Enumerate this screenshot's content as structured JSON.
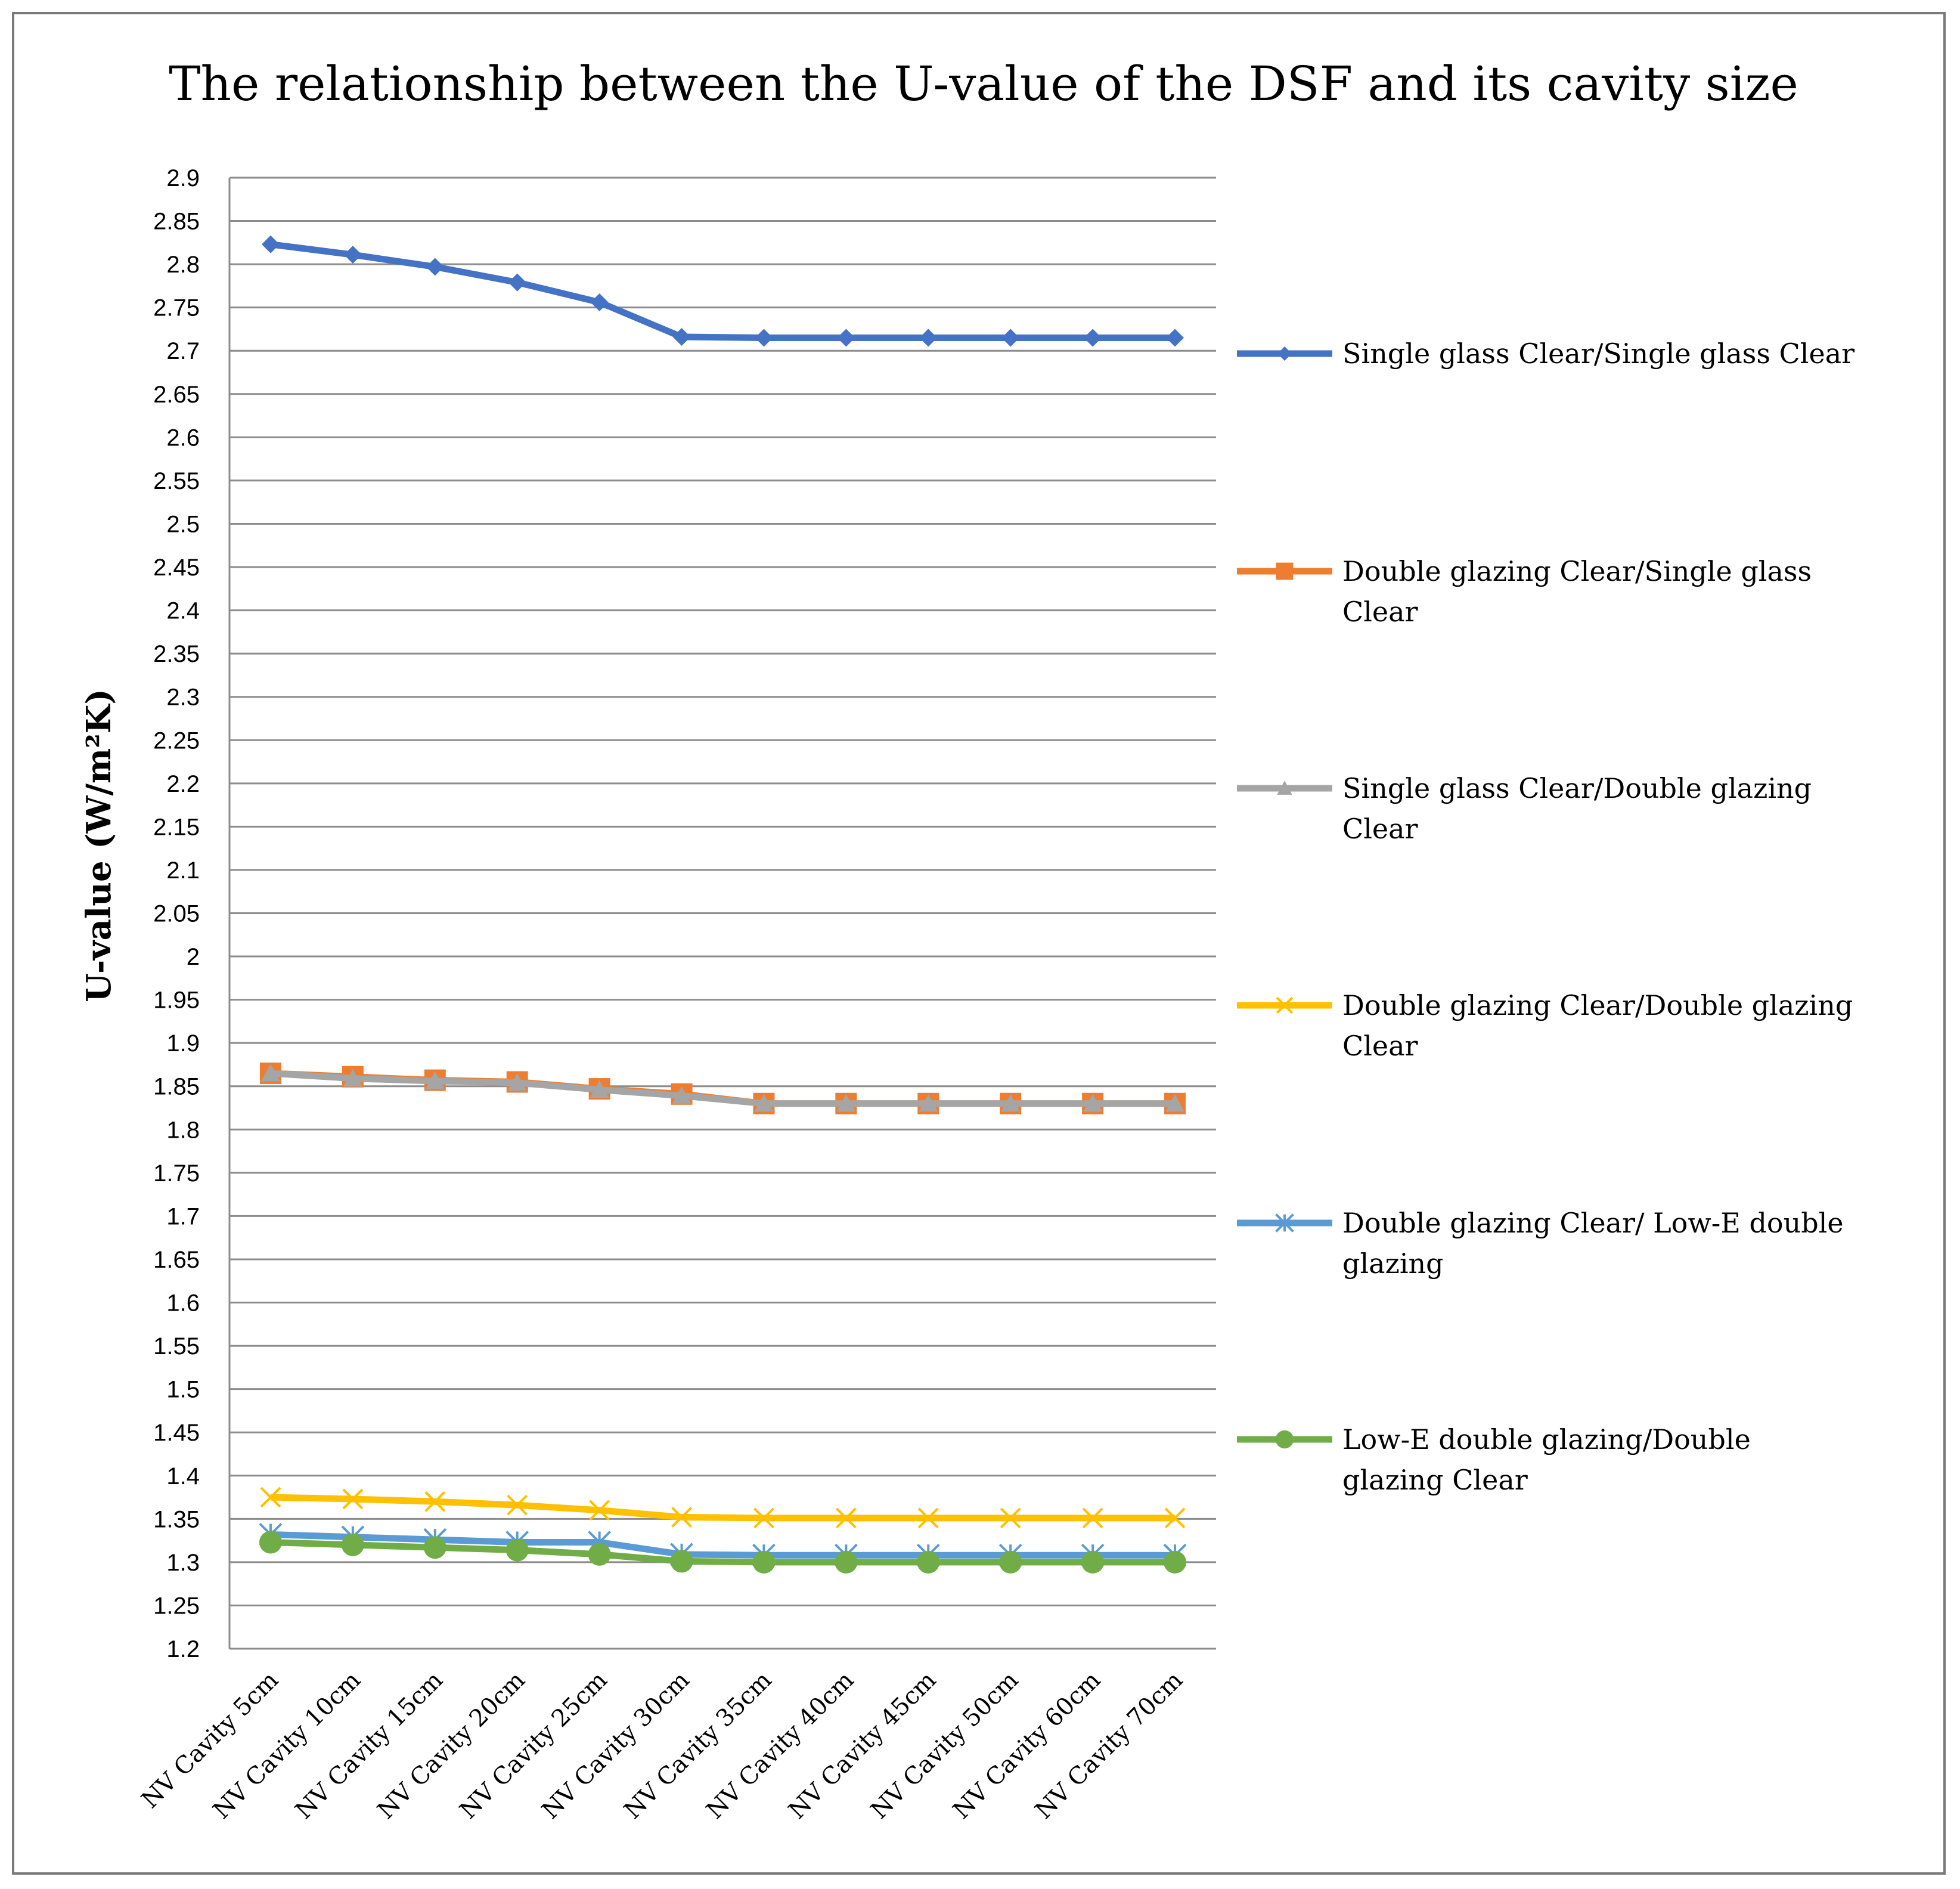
{
  "chart_data": {
    "type": "line",
    "title": "The relationship between the U-value of the DSF and its cavity size",
    "ylabel": "U-value (W/m²K)",
    "xlabel": "",
    "ylim": [
      1.2,
      2.9
    ],
    "ytick_step": 0.05,
    "yticks": [
      "1.2",
      "1.25",
      "1.3",
      "1.35",
      "1.4",
      "1.45",
      "1.5",
      "1.55",
      "1.6",
      "1.65",
      "1.7",
      "1.75",
      "1.8",
      "1.85",
      "1.9",
      "1.95",
      "2",
      "2.05",
      "2.1",
      "2.15",
      "2.2",
      "2.25",
      "2.3",
      "2.35",
      "2.4",
      "2.45",
      "2.5",
      "2.55",
      "2.6",
      "2.65",
      "2.7",
      "2.75",
      "2.8",
      "2.85",
      "2.9"
    ],
    "grid": true,
    "legend_position": "right",
    "categories": [
      "NV Cavity 5cm",
      "NV Cavity 10cm",
      "NV Cavity 15cm",
      "NV Cavity 20cm",
      "NV Cavity 25cm",
      "NV Cavity 30cm",
      "NV Cavity 35cm",
      "NV Cavity 40cm",
      "NV Cavity 45cm",
      "NV Cavity 50cm",
      "NV Cavity 60cm",
      "NV Cavity 70cm"
    ],
    "series": [
      {
        "name": "Single glass Clear/Single glass Clear",
        "legend_lines": [
          "Single glass Clear/Single glass Clear"
        ],
        "color": "#4472c4",
        "marker": "diamond",
        "values": [
          2.823,
          2.811,
          2.797,
          2.779,
          2.756,
          2.716,
          2.715,
          2.715,
          2.715,
          2.715,
          2.715,
          2.715
        ]
      },
      {
        "name": "Double glazing Clear/Single glass Clear",
        "legend_lines": [
          "Double glazing Clear/Single glass",
          "Clear"
        ],
        "color": "#ed7d31",
        "marker": "square",
        "values": [
          1.865,
          1.861,
          1.857,
          1.855,
          1.847,
          1.841,
          1.83,
          1.83,
          1.83,
          1.83,
          1.83,
          1.83
        ]
      },
      {
        "name": "Single glass Clear/Double glazing Clear",
        "legend_lines": [
          "Single glass Clear/Double glazing",
          "Clear"
        ],
        "color": "#a5a5a5",
        "marker": "triangle",
        "values": [
          1.865,
          1.859,
          1.856,
          1.854,
          1.846,
          1.839,
          1.83,
          1.83,
          1.83,
          1.83,
          1.83,
          1.83
        ]
      },
      {
        "name": "Double glazing Clear/Double glazing Clear",
        "legend_lines": [
          "Double glazing Clear/Double glazing",
          "Clear"
        ],
        "color": "#ffc000",
        "marker": "x",
        "values": [
          1.375,
          1.373,
          1.37,
          1.366,
          1.36,
          1.352,
          1.351,
          1.351,
          1.351,
          1.351,
          1.351,
          1.351
        ]
      },
      {
        "name": "Double glazing Clear/ Low-E double glazing",
        "legend_lines": [
          "Double glazing Clear/ Low-E double",
          "glazing"
        ],
        "color": "#5b9bd5",
        "marker": "star",
        "values": [
          1.332,
          1.329,
          1.326,
          1.323,
          1.323,
          1.309,
          1.308,
          1.308,
          1.308,
          1.308,
          1.308,
          1.308
        ]
      },
      {
        "name": "Low-E double glazing/Double glazing Clear",
        "legend_lines": [
          "Low-E double glazing/Double",
          "glazing Clear"
        ],
        "color": "#70ad47",
        "marker": "circle",
        "values": [
          1.323,
          1.32,
          1.317,
          1.314,
          1.309,
          1.301,
          1.3,
          1.3,
          1.3,
          1.3,
          1.3,
          1.3
        ]
      }
    ]
  }
}
